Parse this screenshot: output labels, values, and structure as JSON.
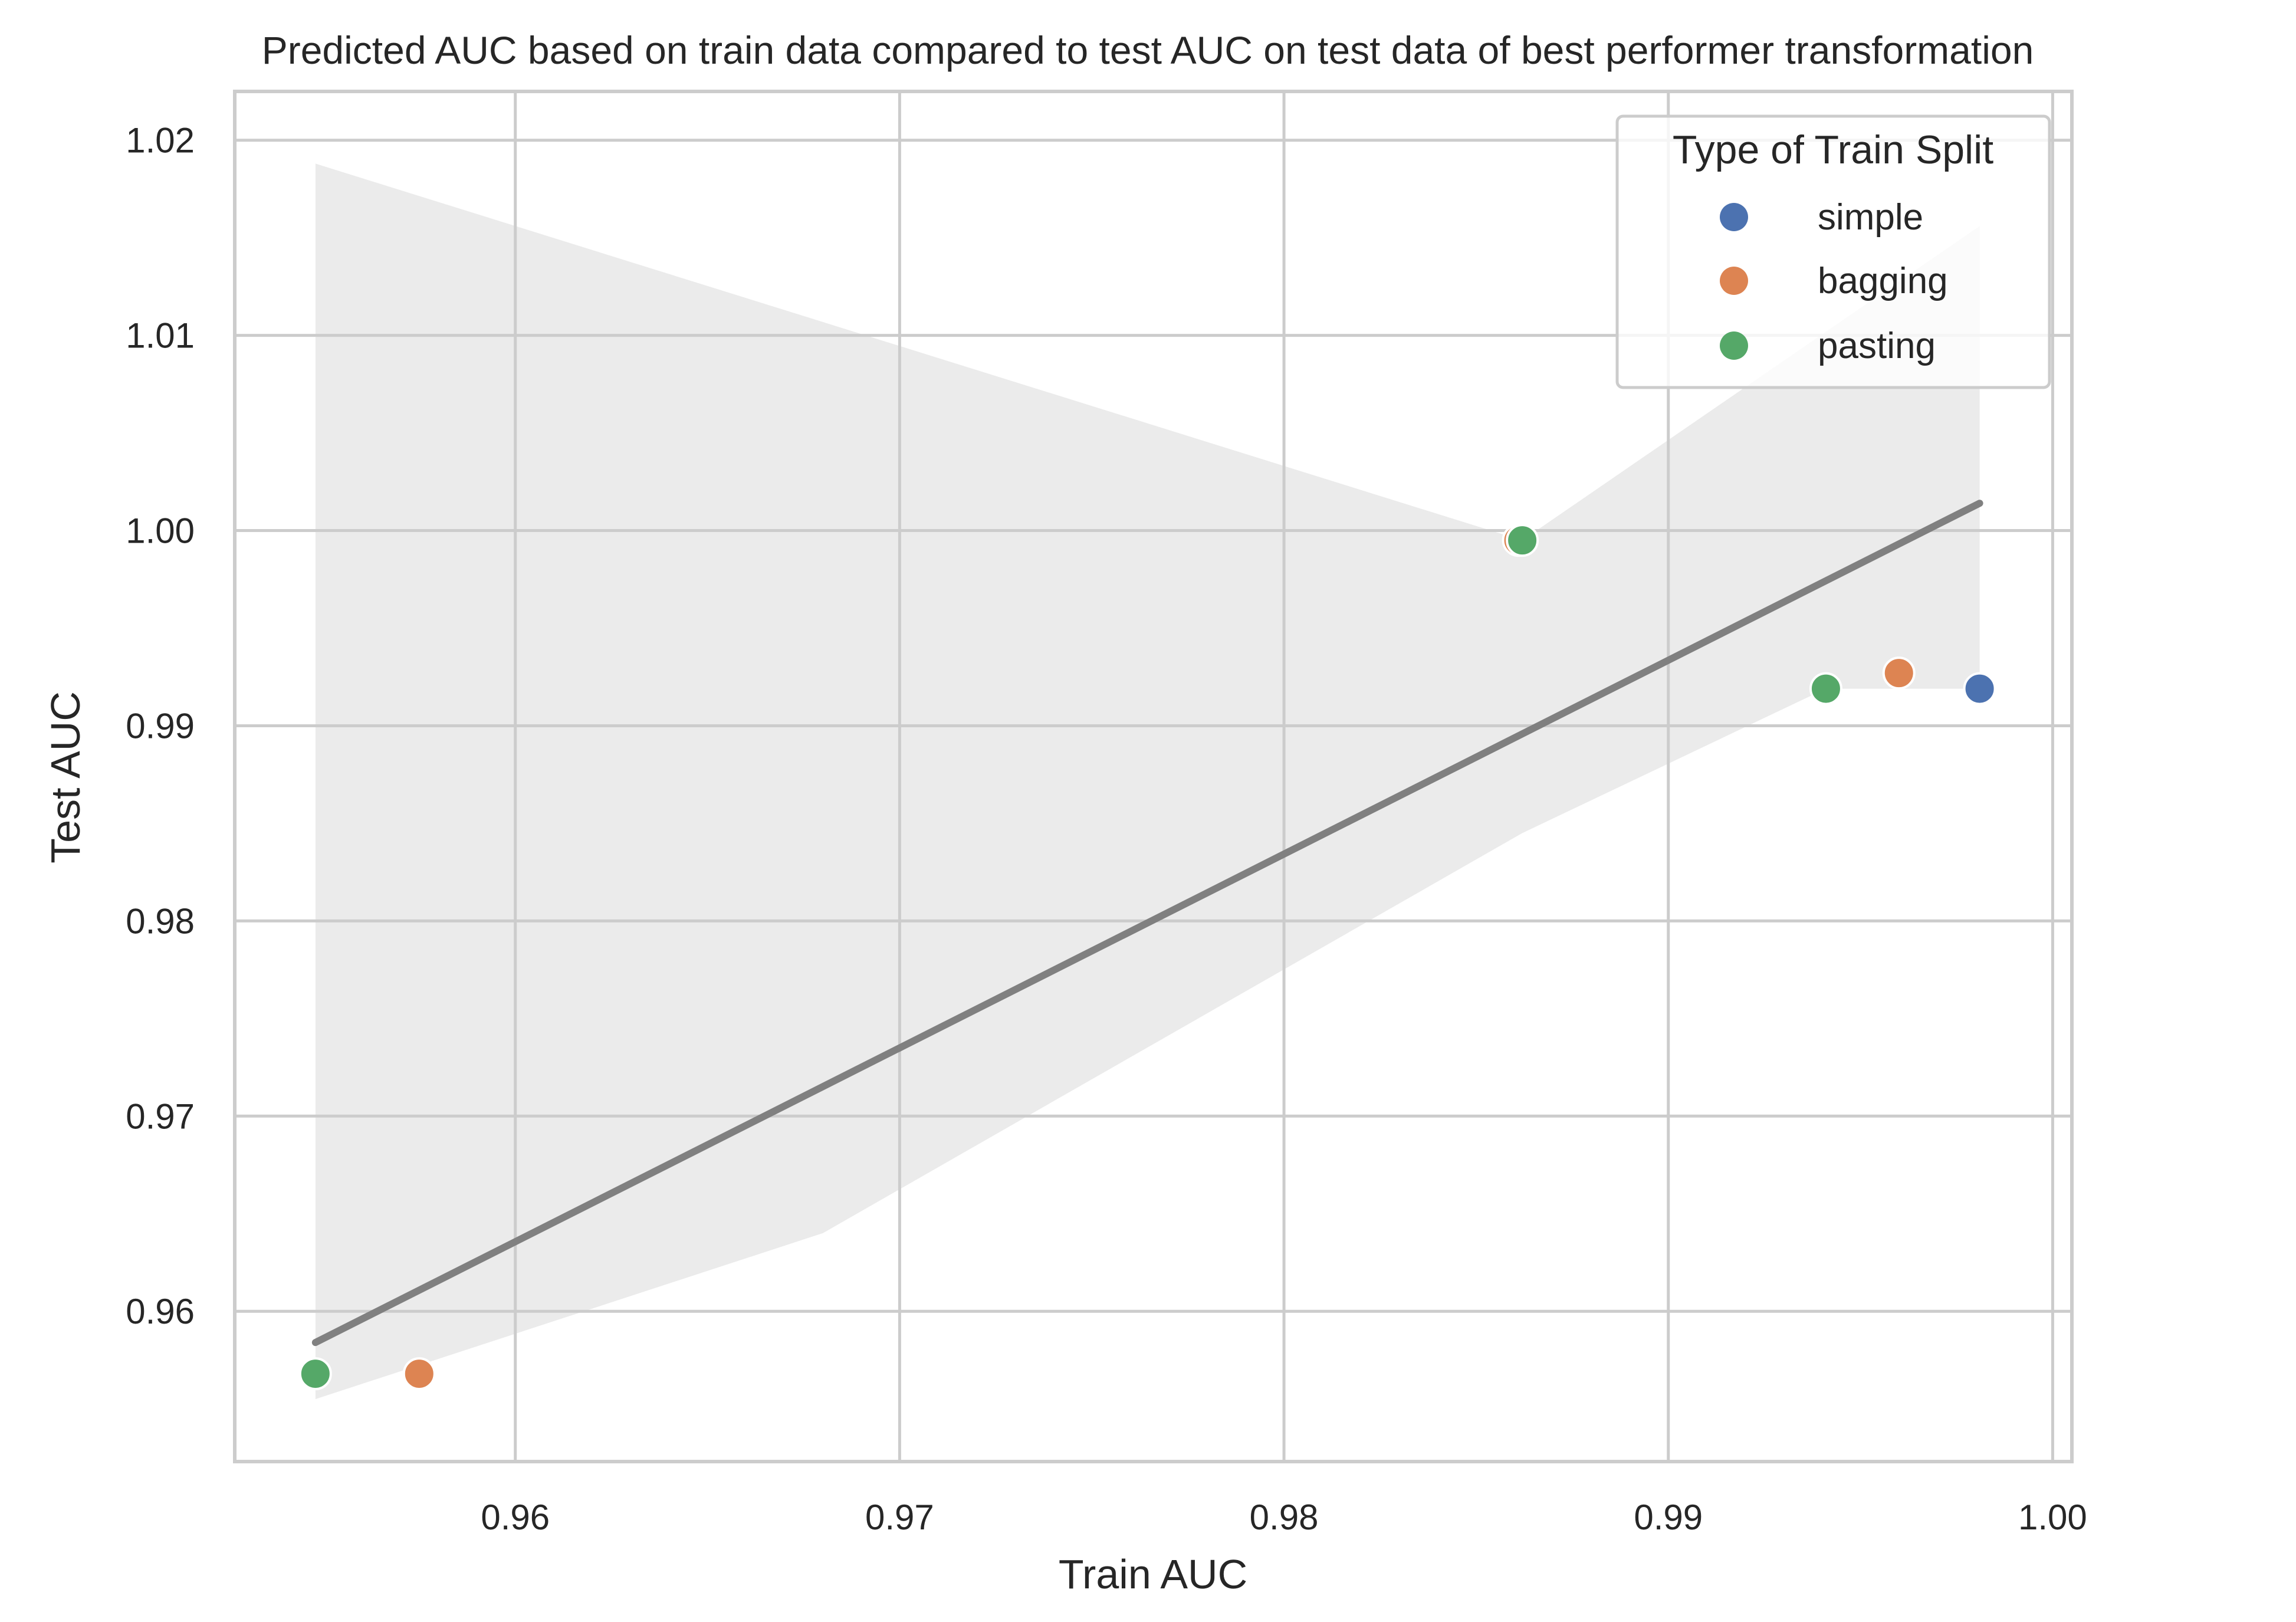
{
  "chart_data": {
    "type": "scatter",
    "title": "Predicted AUC based on train data compared to test AUC on test data of best performer transformation",
    "xlabel": "Train AUC",
    "ylabel": "Test AUC",
    "xlim": [
      0.9527,
      1.0005
    ],
    "ylim": [
      0.9523,
      1.0225
    ],
    "xticks": [
      0.96,
      0.97,
      0.98,
      0.99,
      1.0
    ],
    "xtick_labels": [
      "0.96",
      "0.97",
      "0.98",
      "0.99",
      "1.00"
    ],
    "yticks": [
      0.96,
      0.97,
      0.98,
      0.99,
      1.0,
      1.01,
      1.02
    ],
    "ytick_labels": [
      "0.96",
      "0.97",
      "0.98",
      "0.99",
      "1.00",
      "1.01",
      "1.02"
    ],
    "grid": true,
    "legend": {
      "title": "Type of Train Split",
      "placement": "top-right"
    },
    "series": [
      {
        "name": "simple",
        "color": "#4c72b0",
        "points": [
          {
            "x": 0.9981,
            "y": 0.9919
          }
        ]
      },
      {
        "name": "bagging",
        "color": "#dd8452",
        "points": [
          {
            "x": 0.9575,
            "y": 0.9568
          },
          {
            "x": 0.9861,
            "y": 0.9995
          },
          {
            "x": 0.996,
            "y": 0.9927
          }
        ]
      },
      {
        "name": "pasting",
        "color": "#55a868",
        "points": [
          {
            "x": 0.9548,
            "y": 0.9568
          },
          {
            "x": 0.9862,
            "y": 0.9995
          },
          {
            "x": 0.9941,
            "y": 0.9919
          }
        ]
      }
    ],
    "regression": {
      "color": "#808080",
      "line": [
        {
          "x": 0.9548,
          "y": 0.9584
        },
        {
          "x": 0.9981,
          "y": 1.0014
        }
      ],
      "ci_color": "#ebebeb",
      "ci_upper": [
        {
          "x": 0.9548,
          "y": 1.0188
        },
        {
          "x": 0.9862,
          "y": 0.9995
        },
        {
          "x": 0.9981,
          "y": 1.0156
        }
      ],
      "ci_lower": [
        {
          "x": 0.9548,
          "y": 0.9555
        },
        {
          "x": 0.968,
          "y": 0.964
        },
        {
          "x": 0.9862,
          "y": 0.9845
        },
        {
          "x": 0.9941,
          "y": 0.9919
        },
        {
          "x": 0.9981,
          "y": 0.9919
        }
      ]
    }
  }
}
